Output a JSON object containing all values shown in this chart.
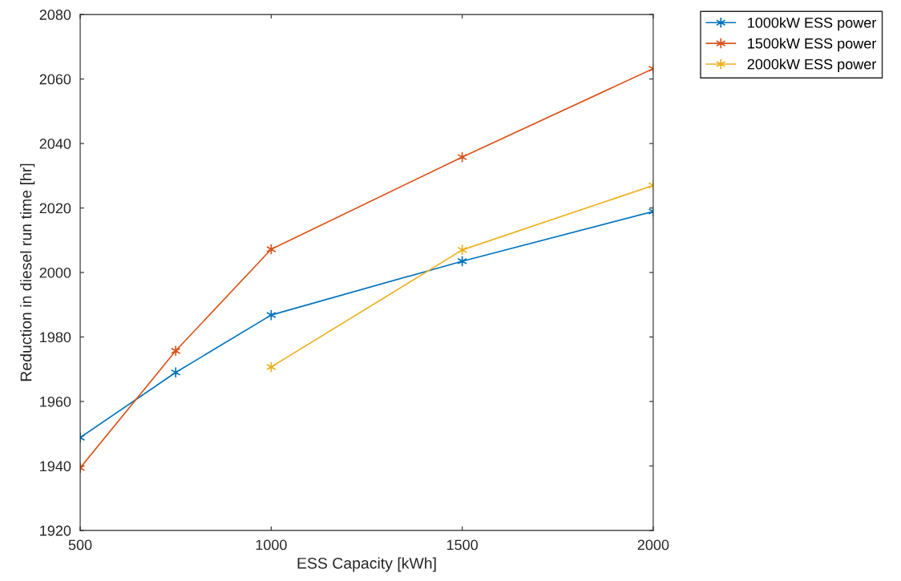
{
  "chart_data": {
    "type": "line",
    "xlabel": "ESS Capacity [kWh]",
    "ylabel": "Reduction in diesel run time [hr]",
    "xlim": [
      500,
      2000
    ],
    "xticks": [
      500,
      1000,
      1500,
      2000
    ],
    "ylim": [
      1920,
      2080
    ],
    "yticks": [
      1920,
      1940,
      1960,
      1980,
      2000,
      2020,
      2040,
      2060,
      2080
    ],
    "grid": false,
    "legend": "top right",
    "marker": "cross",
    "line_style": "solid",
    "series": [
      {
        "name": "1000kW ESS power",
        "color": "#0072bd",
        "x": [
          500,
          750,
          1000,
          1500,
          2000
        ],
        "values": [
          1948.8,
          1969,
          1986.8,
          2003.5,
          2018.9
        ]
      },
      {
        "name": "1500kW ESS power",
        "color": "#d95319",
        "x": [
          500,
          750,
          1000,
          1500,
          2000
        ],
        "values": [
          1939.4,
          1975.7,
          2007.2,
          2035.8,
          2063.2
        ]
      },
      {
        "name": "2000kW ESS power",
        "color": "#edb120",
        "x": [
          1000,
          1500,
          2000
        ],
        "values": [
          1970.7,
          2007,
          2027
        ]
      }
    ]
  }
}
